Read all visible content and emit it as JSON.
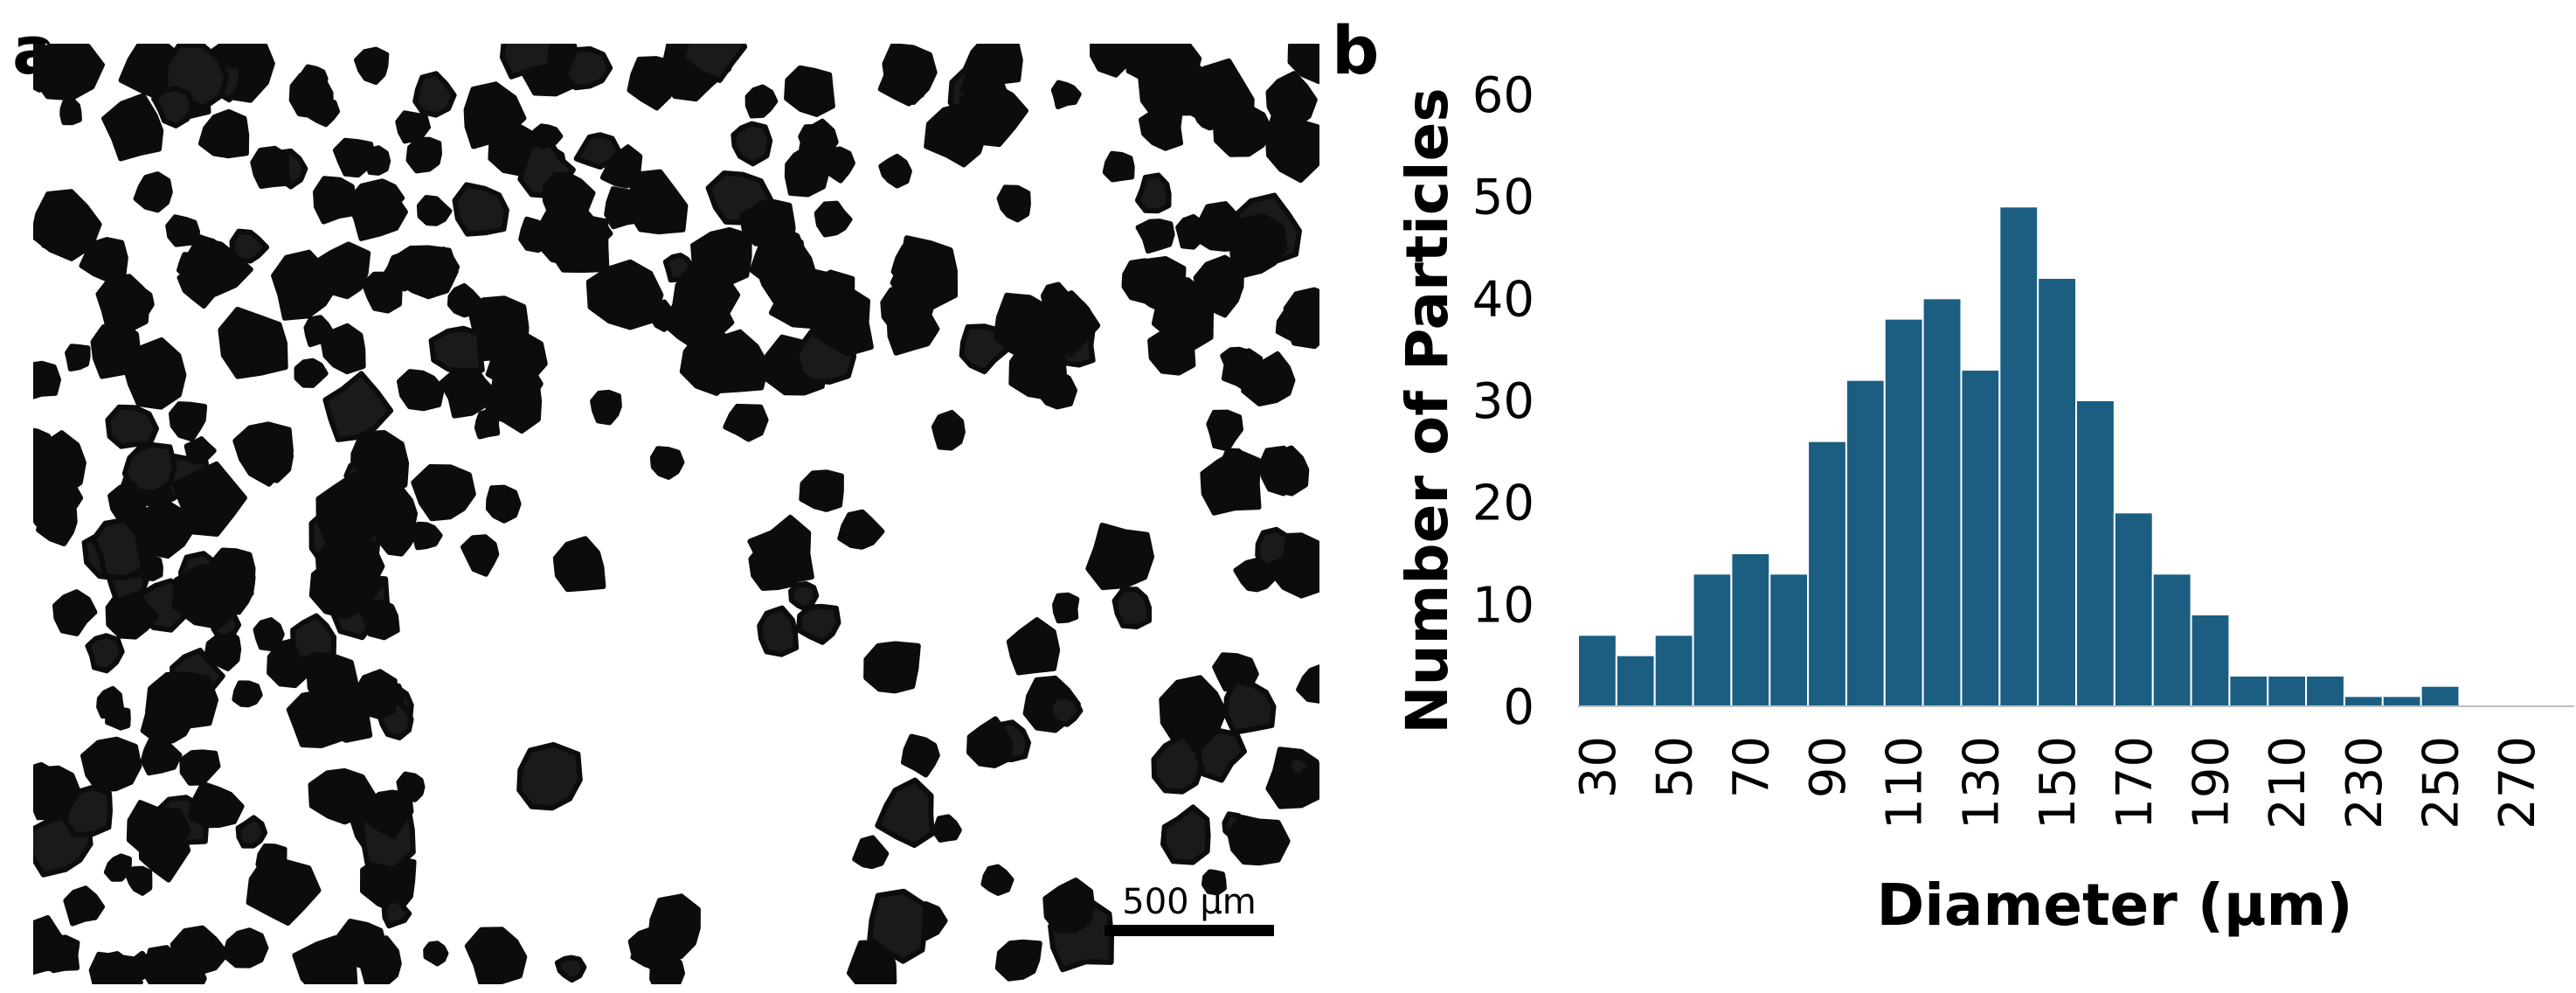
{
  "panels": {
    "a_label": "a",
    "b_label": "b"
  },
  "micrograph": {
    "scale_bar_text": "500 μm"
  },
  "chart_data": {
    "type": "bar",
    "title": "",
    "xlabel": "Diameter (μm)",
    "ylabel": "Number of Particles",
    "bin_width": 10,
    "categories": [
      30,
      40,
      50,
      60,
      70,
      80,
      90,
      100,
      110,
      120,
      130,
      140,
      150,
      160,
      170,
      180,
      190,
      200,
      210,
      220,
      230,
      240,
      250,
      260,
      270,
      280
    ],
    "values": [
      7,
      5,
      7,
      13,
      15,
      13,
      26,
      32,
      38,
      40,
      33,
      49,
      42,
      30,
      19,
      13,
      9,
      3,
      3,
      3,
      1,
      1,
      2,
      0,
      0,
      0
    ],
    "x_tick_labels": [
      "30",
      "50",
      "70",
      "90",
      "110",
      "130",
      "150",
      "170",
      "190",
      "210",
      "230",
      "250",
      "270"
    ],
    "y_tick_labels": [
      "0",
      "10",
      "20",
      "30",
      "40",
      "50",
      "60"
    ],
    "ylim": [
      0,
      60
    ],
    "grid": false,
    "legend": "none",
    "bar_color": "#1b5e82"
  }
}
